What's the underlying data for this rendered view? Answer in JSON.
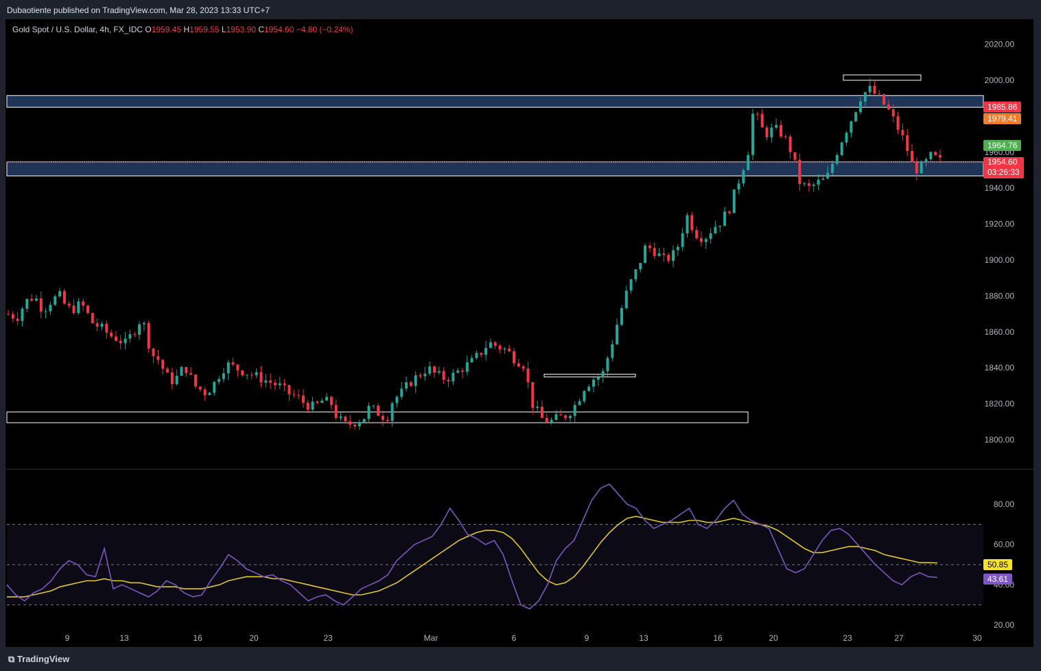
{
  "header": {
    "attribution": "Dubaotiente published on TradingView.com, Mar 28, 2023 13:33 UTC+7"
  },
  "legend": {
    "symbol": "Gold Spot / U.S. Dollar, 4h, FX_IDC",
    "o_label": "O",
    "o": "1959.45",
    "h_label": "H",
    "h": "1959.55",
    "l_label": "L",
    "l": "1953.90",
    "c_label": "C",
    "c": "1954.60",
    "change": "−4.80 (−0.24%)"
  },
  "price_tags": {
    "t1985": "1985.86",
    "t1979": "1979.41",
    "t1964": "1964.76",
    "last": "1954.60",
    "countdown": "03:26:33"
  },
  "rsi_tags": {
    "ma": "50.85",
    "rsi": "43.61"
  },
  "footer": {
    "brand": "TradingView"
  },
  "colors": {
    "up": "#26a69a",
    "down": "#f23645",
    "zone_fill": "#1e3557",
    "rsi_line": "#7e57c2",
    "rsi_ma": "#e3c92a",
    "tag_orange": "#f57c2a",
    "tag_green": "#4caf50"
  },
  "chart_data": [
    {
      "type": "line",
      "subtype": "candlestick",
      "title": "Gold Spot / U.S. Dollar, 4h, FX_IDC",
      "x_ticks": [
        "9",
        "13",
        "16",
        "20",
        "23",
        "Mar",
        "6",
        "9",
        "13",
        "16",
        "20",
        "23",
        "27",
        "30"
      ],
      "y_ticks": [
        1800,
        1820,
        1840,
        1860,
        1880,
        1900,
        1920,
        1940,
        1960,
        2000,
        2020
      ],
      "ylim": [
        1780,
        2035
      ],
      "close_path": [
        [
          0,
          1870
        ],
        [
          6,
          1868
        ],
        [
          12,
          1877
        ],
        [
          18,
          1880
        ],
        [
          24,
          1872
        ],
        [
          30,
          1878
        ],
        [
          36,
          1880
        ],
        [
          40,
          1873
        ],
        [
          46,
          1873
        ],
        [
          50,
          1876
        ],
        [
          58,
          1865
        ],
        [
          64,
          1862
        ],
        [
          70,
          1858
        ],
        [
          76,
          1856
        ],
        [
          80,
          1853
        ],
        [
          86,
          1860
        ],
        [
          90,
          1866
        ],
        [
          94,
          1863
        ],
        [
          98,
          1848
        ],
        [
          104,
          1844
        ],
        [
          108,
          1836
        ],
        [
          114,
          1832
        ],
        [
          118,
          1838
        ],
        [
          122,
          1840
        ],
        [
          128,
          1830
        ],
        [
          132,
          1828
        ],
        [
          136,
          1826
        ],
        [
          142,
          1832
        ],
        [
          146,
          1838
        ],
        [
          150,
          1842
        ],
        [
          156,
          1840
        ],
        [
          162,
          1838
        ],
        [
          168,
          1836
        ],
        [
          174,
          1834
        ],
        [
          180,
          1832
        ],
        [
          186,
          1830
        ],
        [
          192,
          1826
        ],
        [
          198,
          1824
        ],
        [
          204,
          1820
        ],
        [
          210,
          1818
        ],
        [
          216,
          1822
        ],
        [
          222,
          1820
        ],
        [
          226,
          1812
        ],
        [
          232,
          1808
        ],
        [
          238,
          1810
        ],
        [
          244,
          1812
        ],
        [
          248,
          1818
        ],
        [
          254,
          1815
        ],
        [
          260,
          1812
        ],
        [
          264,
          1822
        ],
        [
          270,
          1826
        ],
        [
          276,
          1832
        ],
        [
          282,
          1836
        ],
        [
          288,
          1840
        ],
        [
          294,
          1836
        ],
        [
          300,
          1834
        ],
        [
          306,
          1836
        ],
        [
          312,
          1840
        ],
        [
          318,
          1843
        ],
        [
          324,
          1848
        ],
        [
          330,
          1854
        ],
        [
          336,
          1852
        ],
        [
          342,
          1850
        ],
        [
          348,
          1845
        ],
        [
          354,
          1842
        ],
        [
          360,
          1820
        ],
        [
          366,
          1812
        ],
        [
          372,
          1810
        ],
        [
          378,
          1812
        ],
        [
          384,
          1814
        ],
        [
          390,
          1820
        ],
        [
          396,
          1830
        ],
        [
          402,
          1834
        ],
        [
          408,
          1836
        ],
        [
          414,
          1852
        ],
        [
          420,
          1870
        ],
        [
          426,
          1885
        ],
        [
          432,
          1895
        ],
        [
          438,
          1908
        ],
        [
          444,
          1905
        ],
        [
          450,
          1900
        ],
        [
          456,
          1902
        ],
        [
          460,
          1908
        ],
        [
          466,
          1925
        ],
        [
          472,
          1915
        ],
        [
          478,
          1912
        ],
        [
          484,
          1918
        ],
        [
          490,
          1922
        ],
        [
          496,
          1930
        ],
        [
          502,
          1945
        ],
        [
          508,
          1960
        ],
        [
          512,
          1985
        ],
        [
          516,
          1975
        ],
        [
          520,
          1970
        ],
        [
          526,
          1973
        ],
        [
          532,
          1970
        ],
        [
          538,
          1960
        ],
        [
          544,
          1942
        ],
        [
          550,
          1940
        ],
        [
          556,
          1943
        ],
        [
          562,
          1945
        ],
        [
          568,
          1958
        ],
        [
          574,
          1970
        ],
        [
          580,
          1980
        ],
        [
          586,
          1992
        ],
        [
          592,
          1995
        ],
        [
          598,
          1990
        ],
        [
          604,
          1984
        ],
        [
          610,
          1975
        ],
        [
          616,
          1965
        ],
        [
          622,
          1950
        ],
        [
          628,
          1952
        ],
        [
          634,
          1958
        ],
        [
          640,
          1955
        ]
      ],
      "x_span": [
        0,
        640
      ]
    },
    {
      "type": "line",
      "title": "RSI",
      "y_ticks": [
        20,
        40,
        60,
        80
      ],
      "ylim": [
        18,
        92
      ],
      "bands": [
        30,
        50,
        70
      ],
      "series": [
        {
          "values": [
            40,
            35,
            32,
            36,
            38,
            42,
            48,
            52,
            50,
            45,
            44,
            58,
            38,
            40,
            38,
            36,
            34,
            37,
            42,
            40,
            36,
            34,
            35,
            42,
            48,
            55,
            52,
            48,
            46,
            44,
            45,
            42,
            40,
            36,
            32,
            34,
            35,
            32,
            30,
            34,
            38,
            40,
            42,
            45,
            52,
            56,
            60,
            62,
            64,
            70,
            78,
            72,
            65,
            63,
            60,
            62,
            55,
            42,
            30,
            28,
            32,
            40,
            52,
            58,
            62,
            72,
            82,
            88,
            90,
            85,
            80,
            78,
            72,
            68,
            70,
            72,
            75,
            78,
            70,
            68,
            72,
            78,
            82,
            75,
            72,
            70,
            68,
            58,
            48,
            46,
            48,
            55,
            62,
            67,
            68,
            65,
            60,
            55,
            50,
            46,
            42,
            40,
            44,
            46,
            44,
            43.61
          ]
        },
        {
          "values": [
            34,
            34,
            34,
            35,
            36,
            37,
            39,
            40,
            41,
            42,
            42,
            43,
            42,
            42,
            41,
            41,
            40,
            39,
            39,
            39,
            38,
            38,
            38,
            39,
            40,
            42,
            43,
            44,
            44,
            44,
            43,
            43,
            42,
            41,
            40,
            39,
            38,
            37,
            36,
            35,
            35,
            36,
            37,
            39,
            41,
            44,
            47,
            50,
            53,
            56,
            59,
            62,
            64,
            66,
            67,
            67,
            66,
            63,
            58,
            52,
            46,
            42,
            40,
            41,
            44,
            49,
            55,
            61,
            66,
            70,
            73,
            74,
            73,
            72,
            71,
            71,
            71,
            72,
            72,
            71,
            71,
            72,
            73,
            72,
            71,
            70,
            69,
            67,
            64,
            61,
            58,
            56,
            56,
            57,
            58,
            59,
            59,
            58,
            57,
            55,
            54,
            53,
            52,
            51,
            51,
            50.85
          ]
        }
      ]
    }
  ]
}
